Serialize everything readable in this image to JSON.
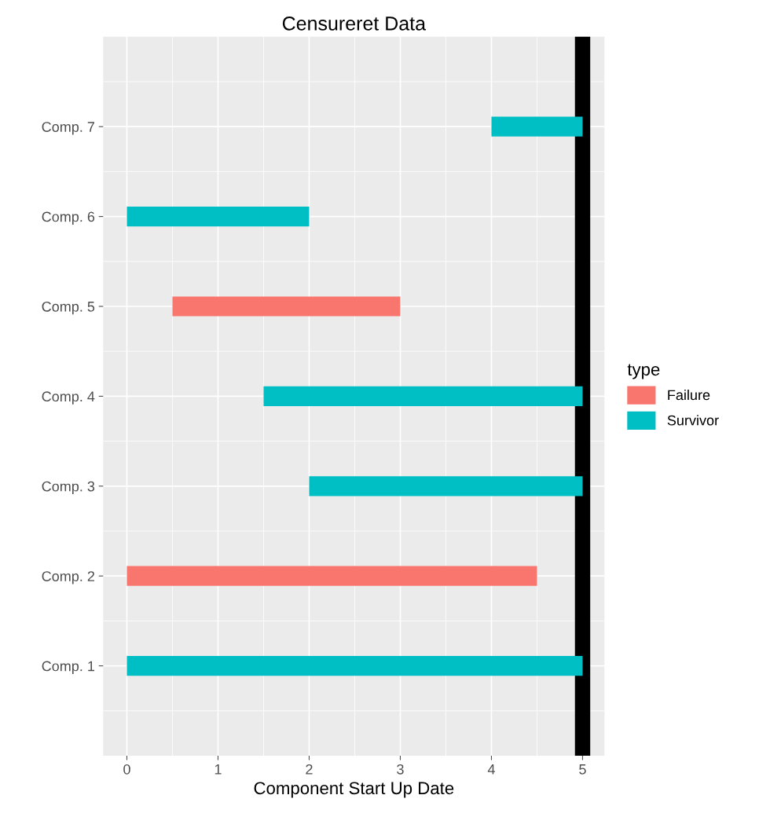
{
  "chart_data": {
    "type": "bar",
    "orientation": "horizontal",
    "title": "Censureret Data",
    "xlabel": "Component Start Up Date",
    "categories": [
      "Comp. 7",
      "Comp. 6",
      "Comp. 5",
      "Comp. 4",
      "Comp. 3",
      "Comp. 2",
      "Comp. 1"
    ],
    "series": [
      {
        "name": "Failure",
        "color": "#f8766d",
        "values": [
          null,
          null,
          2.5,
          null,
          null,
          4.5,
          null
        ],
        "base": [
          null,
          null,
          0.5,
          null,
          null,
          0,
          null
        ]
      },
      {
        "name": "Survivor",
        "color": "#00bfc4",
        "values": [
          1,
          2,
          null,
          3.5,
          3,
          null,
          5
        ],
        "base": [
          4,
          0,
          null,
          1.5,
          2,
          null,
          0
        ]
      }
    ],
    "xlim": [
      -0.26,
      5.24
    ],
    "xticks": [
      0,
      1,
      2,
      3,
      4,
      5
    ],
    "ref_lines": [
      {
        "axis": "x",
        "value": 5,
        "color": "#000000"
      }
    ],
    "grid": true,
    "legend": "right",
    "legend_title": "type"
  }
}
